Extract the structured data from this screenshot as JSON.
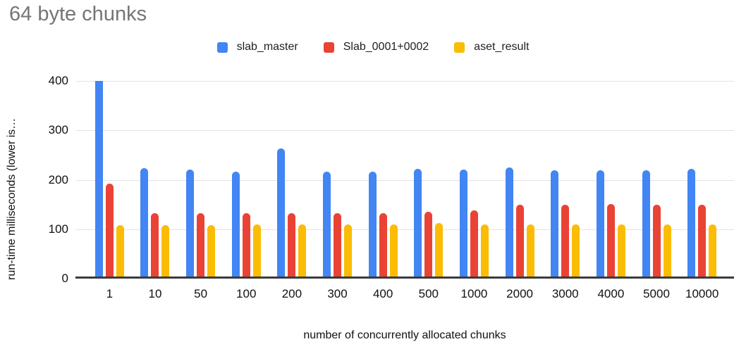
{
  "page": {
    "background": "#ffffff"
  },
  "chart_data": {
    "type": "bar",
    "title": "64 byte chunks",
    "title_color": "#757575",
    "xlabel": "number of concurrently allocated chunks",
    "ylabel": "run-time milliseconds (lower is…",
    "ylim": [
      0,
      400
    ],
    "yticks": [
      0,
      100,
      200,
      300,
      400
    ],
    "grid": true,
    "legend_position": "top",
    "gridline_color": "#e3e3e3",
    "axis_line_color": "#3b3b3b",
    "tick_label_color": "#111111",
    "categories": [
      "1",
      "10",
      "50",
      "100",
      "200",
      "300",
      "400",
      "500",
      "1000",
      "2000",
      "3000",
      "4000",
      "5000",
      "10000"
    ],
    "series": [
      {
        "name": "slab_master",
        "color": "#4285F4",
        "values": [
          400,
          224,
          220,
          217,
          263,
          216,
          216,
          222,
          220,
          225,
          219,
          219,
          219,
          222
        ]
      },
      {
        "name": "Slab_0001+0002",
        "color": "#EA4335",
        "values": [
          192,
          133,
          132,
          132,
          132,
          132,
          133,
          135,
          138,
          150,
          150,
          151,
          150,
          150
        ]
      },
      {
        "name": "aset_result",
        "color": "#FBBC04",
        "values": [
          108,
          108,
          108,
          110,
          110,
          110,
          110,
          112,
          110,
          110,
          110,
          110,
          110,
          110
        ]
      }
    ]
  }
}
